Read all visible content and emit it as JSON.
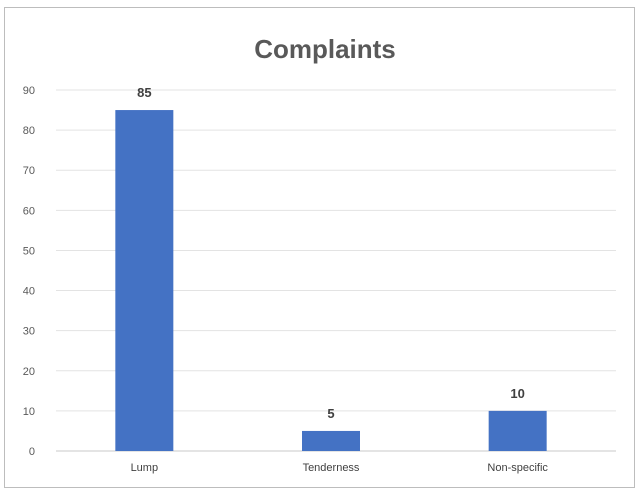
{
  "chart_data": {
    "type": "bar",
    "title": "Complaints",
    "categories": [
      "Lump",
      "Tenderness",
      "Non-specific"
    ],
    "values": [
      85,
      5,
      10
    ],
    "data_labels": [
      "85",
      "5",
      "10"
    ],
    "xlabel": "",
    "ylabel": "",
    "ylim": [
      0,
      90
    ],
    "yticks": [
      "0",
      "10",
      "20",
      "30",
      "40",
      "50",
      "60",
      "70",
      "80",
      "90"
    ],
    "grid": true,
    "legend": "none",
    "bar_color": "#4472C4"
  }
}
